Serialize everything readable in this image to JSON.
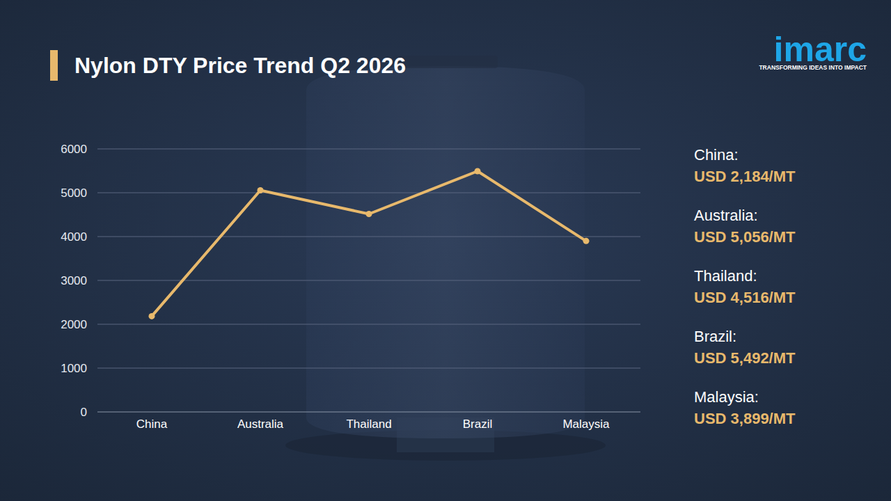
{
  "chart_data": {
    "type": "line",
    "title": "Nylon DTY Price Trend Q2 2026",
    "categories": [
      "China",
      "Australia",
      "Thailand",
      "Brazil",
      "Malaysia"
    ],
    "values": [
      2184,
      5056,
      4516,
      5492,
      3899
    ],
    "value_labels": [
      "USD 2,184/MT",
      "USD 5,056/MT",
      "USD 4,516/MT",
      "USD 5,492/MT",
      "USD 3,899/MT"
    ],
    "annotations": [
      "China:",
      "Australia:",
      "Thailand:",
      "Brazil:",
      "Malaysia:"
    ],
    "color": "#e8b96c",
    "marker": "circle",
    "line_style": "solid",
    "ylim": [
      0,
      6000
    ],
    "yticks": [
      0,
      1000,
      2000,
      3000,
      4000,
      5000,
      6000
    ],
    "grid": true,
    "data_labels": true
  },
  "logo": {
    "text": "imarc",
    "tagline": "TRANSFORMING IDEAS INTO IMPACT"
  }
}
